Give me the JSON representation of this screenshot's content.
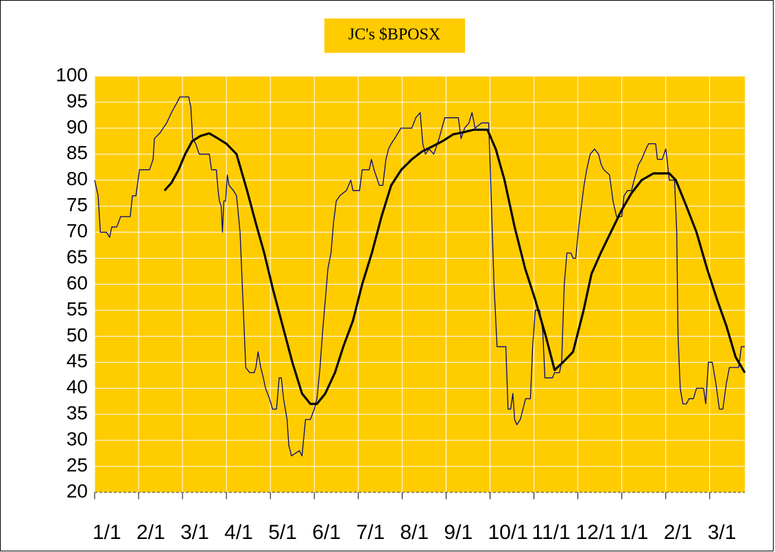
{
  "chart_data": {
    "type": "line",
    "title": "JC's $BPOSX",
    "xlim": [
      0,
      14.8
    ],
    "xticks": [
      {
        "value": 0,
        "label": "1/1"
      },
      {
        "value": 1,
        "label": "2/1"
      },
      {
        "value": 2,
        "label": "3/1"
      },
      {
        "value": 3,
        "label": "4/1"
      },
      {
        "value": 4,
        "label": "5/1"
      },
      {
        "value": 5,
        "label": "6/1"
      },
      {
        "value": 6,
        "label": "7/1"
      },
      {
        "value": 7,
        "label": "8/1"
      },
      {
        "value": 8,
        "label": "9/1"
      },
      {
        "value": 9,
        "label": "10/1"
      },
      {
        "value": 10,
        "label": "11/1"
      },
      {
        "value": 11,
        "label": "12/1"
      },
      {
        "value": 12,
        "label": "1/1"
      },
      {
        "value": 13,
        "label": "2/1"
      },
      {
        "value": 14,
        "label": "3/1"
      }
    ],
    "ylim": [
      20,
      100
    ],
    "yticks": [
      20,
      25,
      30,
      35,
      40,
      45,
      50,
      55,
      60,
      65,
      70,
      75,
      80,
      85,
      90,
      95,
      100
    ],
    "grid": true,
    "background": "#ffcc00",
    "series": [
      {
        "color": "#000080",
        "x": [
          0,
          0.08,
          0.13,
          0.27,
          0.34,
          0.39,
          0.5,
          0.55,
          0.59,
          0.81,
          0.86,
          0.94,
          1.02,
          1.25,
          1.33,
          1.36,
          1.48,
          1.56,
          1.64,
          1.75,
          1.88,
          1.94,
          2.14,
          2.19,
          2.23,
          2.3,
          2.38,
          2.61,
          2.66,
          2.77,
          2.81,
          2.84,
          2.88,
          2.91,
          2.94,
          2.98,
          3.02,
          3.06,
          3.16,
          3.23,
          3.31,
          3.38,
          3.44,
          3.53,
          3.63,
          3.67,
          3.72,
          3.78,
          3.84,
          3.89,
          3.98,
          4.05,
          4.14,
          4.2,
          4.25,
          4.3,
          4.38,
          4.42,
          4.48,
          4.66,
          4.72,
          4.8,
          4.91,
          5,
          5.06,
          5.13,
          5.19,
          5.25,
          5.31,
          5.38,
          5.44,
          5.5,
          5.58,
          5.73,
          5.83,
          5.88,
          6.03,
          6.09,
          6.25,
          6.3,
          6.36,
          6.44,
          6.48,
          6.56,
          6.63,
          6.69,
          6.75,
          6.83,
          6.97,
          7.22,
          7.31,
          7.41,
          7.47,
          7.53,
          7.61,
          7.72,
          7.84,
          7.97,
          8.28,
          8.34,
          8.42,
          8.52,
          8.59,
          8.66,
          8.81,
          8.97,
          9.03,
          9.09,
          9.16,
          9.36,
          9.41,
          9.47,
          9.52,
          9.56,
          9.61,
          9.69,
          9.75,
          9.81,
          9.92,
          9.97,
          10.03,
          10.13,
          10.2,
          10.25,
          10.42,
          10.47,
          10.58,
          10.63,
          10.69,
          10.75,
          10.84,
          10.89,
          10.95,
          11.02,
          11.08,
          11.14,
          11.2,
          11.28,
          11.38,
          11.47,
          11.53,
          11.59,
          11.72,
          11.8,
          11.88,
          12,
          12.05,
          12.13,
          12.22,
          12.28,
          12.38,
          12.45,
          12.55,
          12.61,
          12.77,
          12.81,
          12.92,
          13,
          13.03,
          13.08,
          13.2,
          13.25,
          13.28,
          13.33,
          13.39,
          13.47,
          13.53,
          13.63,
          13.7,
          13.86,
          13.91,
          13.97,
          14.06,
          14.14,
          14.22,
          14.3,
          14.38,
          14.45,
          14.66,
          14.72,
          14.8
        ],
        "values": [
          80,
          77,
          70,
          70,
          69,
          71,
          71,
          72,
          73,
          73,
          77,
          77,
          82,
          82,
          84,
          88,
          89,
          90,
          91,
          93,
          95,
          96,
          96,
          94,
          88,
          87,
          85,
          85,
          82,
          82,
          78,
          76,
          75,
          70,
          76,
          76,
          81,
          79,
          78,
          77,
          70,
          56,
          44,
          43,
          43,
          44,
          47,
          44,
          42,
          40,
          38,
          36,
          36,
          42,
          42,
          38,
          34,
          29,
          27,
          28,
          27,
          34,
          34,
          36,
          38,
          44,
          51,
          57,
          63,
          66,
          72,
          76,
          77,
          78,
          80,
          78,
          78,
          82,
          82,
          84,
          82,
          80,
          79,
          79,
          84,
          86,
          87,
          88,
          90,
          90,
          92,
          93,
          87,
          85,
          86,
          85,
          88,
          92,
          92,
          88,
          90,
          91,
          93,
          90,
          91,
          91,
          76,
          60,
          48,
          48,
          36,
          36,
          39,
          34,
          33,
          34,
          36,
          38,
          38,
          48,
          55,
          55,
          51,
          42,
          42,
          43,
          43,
          45,
          60,
          66,
          66,
          65,
          65,
          71,
          75,
          79,
          82,
          85,
          86,
          85,
          83,
          82,
          81,
          76,
          73,
          73,
          77,
          78,
          78,
          80,
          83,
          84,
          86,
          87,
          87,
          84,
          84,
          86,
          84,
          80,
          80,
          70,
          50,
          40,
          37,
          37,
          38,
          38,
          40,
          40,
          37,
          45,
          45,
          41,
          36,
          36,
          41,
          44,
          44,
          48,
          48
        ]
      },
      {
        "color": "#000000",
        "x": [
          1.59,
          1.75,
          1.91,
          2.06,
          2.22,
          2.41,
          2.61,
          2.81,
          3,
          3.23,
          3.47,
          3.66,
          3.86,
          4.06,
          4.28,
          4.5,
          4.72,
          4.91,
          5.06,
          5.25,
          5.47,
          5.66,
          5.88,
          6.09,
          6.31,
          6.53,
          6.75,
          6.98,
          7.22,
          7.45,
          7.69,
          7.92,
          8.16,
          8.39,
          8.63,
          8.94,
          9.13,
          9.33,
          9.56,
          9.8,
          10.03,
          10.27,
          10.47,
          10.66,
          10.89,
          11.13,
          11.31,
          11.52,
          11.75,
          11.98,
          12.22,
          12.45,
          12.72,
          13.08,
          13.23,
          13.47,
          13.7,
          13.94,
          14.17,
          14.38,
          14.59,
          14.8
        ],
        "values": [
          78,
          79.5,
          82,
          85,
          87.5,
          88.5,
          89,
          88,
          87,
          85,
          78,
          72,
          66,
          59,
          52,
          45,
          39,
          37,
          37,
          39,
          43,
          48,
          53,
          60,
          66,
          73,
          79,
          82,
          84,
          85.5,
          86.5,
          87.5,
          88.8,
          89.2,
          89.7,
          89.7,
          86,
          80,
          71,
          63,
          57,
          50,
          43.5,
          45,
          47,
          55,
          62,
          66,
          70,
          74,
          77.5,
          80,
          81.3,
          81.3,
          80,
          75,
          70,
          63,
          57,
          52,
          46,
          43
        ]
      }
    ]
  }
}
